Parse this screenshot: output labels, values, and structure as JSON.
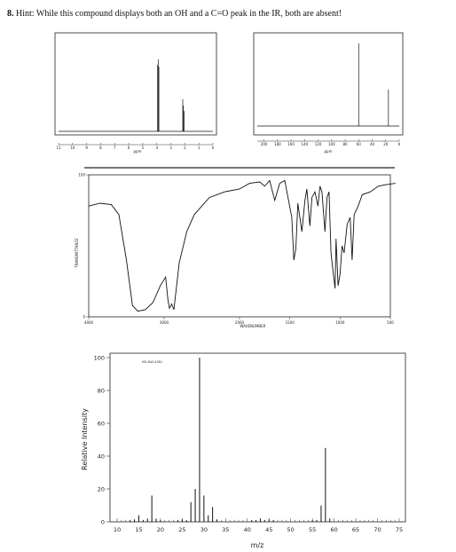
{
  "problem": {
    "number": "8.",
    "text": "Hint: While this compound displays both an OH and a C=O peak in the IR, both are absent!"
  },
  "chart_data": [
    {
      "type": "line",
      "name": "1H NMR",
      "xlabel": "ppm",
      "x_ticks": [
        "11",
        "10",
        "9",
        "8",
        "7",
        "6",
        "5",
        "4",
        "3",
        "2",
        "1",
        "0"
      ],
      "xlim": [
        11,
        0
      ],
      "peaks": [
        {
          "ppm": 3.95,
          "height": 0.72
        },
        {
          "ppm": 3.9,
          "height": 0.78
        },
        {
          "ppm": 3.85,
          "height": 0.7
        },
        {
          "ppm": 2.15,
          "height": 0.35
        },
        {
          "ppm": 2.1,
          "height": 0.28
        },
        {
          "ppm": 2.05,
          "height": 0.22
        }
      ]
    },
    {
      "type": "line",
      "name": "13C NMR",
      "xlabel": "ppm",
      "x_ticks": [
        "200",
        "180",
        "160",
        "140",
        "120",
        "100",
        "80",
        "60",
        "40",
        "20",
        "0"
      ],
      "xlim": [
        210,
        0
      ],
      "peaks": [
        {
          "ppm": 60,
          "height": 0.95
        },
        {
          "ppm": 16,
          "height": 0.42
        }
      ]
    },
    {
      "type": "line",
      "name": "IR",
      "xlabel": "WAVENUMBER",
      "ylabel": "TRANSMITTANCE",
      "x_ticks": [
        "4000",
        "3000",
        "2000",
        "1500",
        "1000",
        "500"
      ],
      "y_ticks": [
        "100",
        "0"
      ],
      "ylim": [
        0,
        100
      ],
      "series_points": [
        [
          4000,
          78
        ],
        [
          3850,
          80
        ],
        [
          3700,
          79
        ],
        [
          3600,
          72
        ],
        [
          3500,
          40
        ],
        [
          3420,
          8
        ],
        [
          3350,
          4
        ],
        [
          3250,
          5
        ],
        [
          3150,
          10
        ],
        [
          3050,
          22
        ],
        [
          2980,
          28
        ],
        [
          2950,
          12
        ],
        [
          2930,
          6
        ],
        [
          2900,
          9
        ],
        [
          2870,
          5
        ],
        [
          2800,
          38
        ],
        [
          2700,
          60
        ],
        [
          2600,
          72
        ],
        [
          2400,
          84
        ],
        [
          2200,
          88
        ],
        [
          2000,
          90
        ],
        [
          1900,
          94
        ],
        [
          1800,
          95
        ],
        [
          1750,
          92
        ],
        [
          1700,
          96
        ],
        [
          1650,
          82
        ],
        [
          1600,
          94
        ],
        [
          1550,
          96
        ],
        [
          1480,
          70
        ],
        [
          1460,
          40
        ],
        [
          1440,
          48
        ],
        [
          1420,
          80
        ],
        [
          1380,
          60
        ],
        [
          1350,
          82
        ],
        [
          1330,
          90
        ],
        [
          1300,
          64
        ],
        [
          1280,
          84
        ],
        [
          1250,
          88
        ],
        [
          1220,
          78
        ],
        [
          1200,
          92
        ],
        [
          1180,
          88
        ],
        [
          1150,
          60
        ],
        [
          1130,
          84
        ],
        [
          1110,
          88
        ],
        [
          1090,
          45
        ],
        [
          1070,
          32
        ],
        [
          1050,
          20
        ],
        [
          1040,
          55
        ],
        [
          1020,
          22
        ],
        [
          1000,
          30
        ],
        [
          980,
          50
        ],
        [
          960,
          45
        ],
        [
          930,
          65
        ],
        [
          900,
          70
        ],
        [
          880,
          40
        ],
        [
          860,
          72
        ],
        [
          820,
          78
        ],
        [
          780,
          86
        ],
        [
          700,
          88
        ],
        [
          620,
          92
        ],
        [
          550,
          93
        ],
        [
          450,
          94
        ]
      ]
    },
    {
      "type": "bar",
      "name": "Mass spectrum",
      "title": "MS-NW-4381",
      "xlabel": "m/z",
      "ylabel": "Relative Intensity",
      "xlim": [
        10,
        75
      ],
      "ylim": [
        0,
        100
      ],
      "x_ticks": [
        10,
        15,
        20,
        25,
        30,
        35,
        40,
        45,
        50,
        55,
        60,
        65,
        70,
        75
      ],
      "y_ticks": [
        0,
        20,
        40,
        60,
        80,
        100
      ],
      "x": [
        13,
        14,
        15,
        16,
        17,
        18,
        19,
        20,
        24,
        25,
        26,
        27,
        28,
        29,
        30,
        31,
        32,
        33,
        41,
        42,
        43,
        44,
        45,
        46,
        55,
        56,
        57,
        58,
        59
      ],
      "values": [
        1,
        1.5,
        4,
        1,
        2,
        16,
        2,
        1,
        1,
        1.5,
        1,
        12,
        20,
        100,
        16,
        4,
        9,
        1.5,
        1,
        1,
        2,
        1,
        1.5,
        1,
        1,
        1,
        10,
        45,
        2
      ]
    }
  ]
}
